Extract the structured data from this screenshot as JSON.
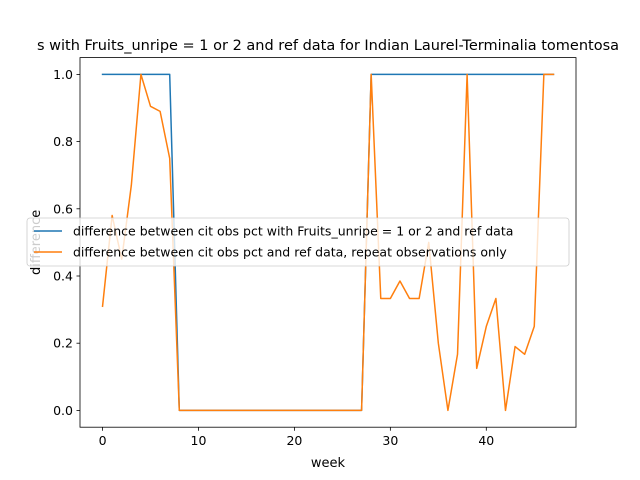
{
  "chart_data": {
    "type": "line",
    "title": "s with Fruits_unripe = 1 or 2 and ref data for Indian Laurel-Terminalia tomentosa",
    "xlabel": "week",
    "ylabel": "difference",
    "xlim": [
      -2.35,
      49.35
    ],
    "ylim": [
      -0.05,
      1.05
    ],
    "xticks": [
      0,
      10,
      20,
      30,
      40
    ],
    "yticks": [
      0.0,
      0.2,
      0.4,
      0.6,
      0.8,
      1.0
    ],
    "legend_placement": "center-right",
    "grid": false,
    "series": [
      {
        "name": "difference between cit obs pct with Fruits_unripe = 1 or 2 and ref data",
        "color": "#1f77b4",
        "x": [
          0,
          1,
          2,
          3,
          4,
          5,
          6,
          7,
          8,
          9,
          10,
          11,
          12,
          13,
          14,
          15,
          16,
          17,
          18,
          19,
          20,
          21,
          22,
          23,
          24,
          25,
          26,
          27,
          28,
          29,
          30,
          31,
          32,
          33,
          34,
          35,
          36,
          37,
          38,
          39,
          40,
          41,
          42,
          43,
          44,
          45,
          46,
          47
        ],
        "y": [
          1,
          1,
          1,
          1,
          1,
          1,
          1,
          1,
          0,
          0,
          0,
          0,
          0,
          0,
          0,
          0,
          0,
          0,
          0,
          0,
          0,
          0,
          0,
          0,
          0,
          0,
          0,
          0,
          1,
          1,
          1,
          1,
          1,
          1,
          1,
          1,
          1,
          1,
          1,
          1,
          1,
          1,
          1,
          1,
          1,
          1,
          1,
          1
        ]
      },
      {
        "name": "difference between cit obs pct and ref data, repeat observations only",
        "color": "#ff7f0e",
        "x": [
          0,
          1,
          2,
          3,
          4,
          5,
          6,
          7,
          8,
          9,
          10,
          11,
          12,
          13,
          14,
          15,
          16,
          17,
          18,
          19,
          20,
          21,
          22,
          23,
          24,
          25,
          26,
          27,
          28,
          29,
          30,
          31,
          32,
          33,
          34,
          35,
          36,
          37,
          38,
          39,
          40,
          41,
          42,
          43,
          44,
          45,
          46,
          47
        ],
        "y": [
          0.31,
          0.58,
          0.45,
          0.67,
          1.0,
          0.905,
          0.89,
          0.75,
          0,
          0,
          0,
          0,
          0,
          0,
          0,
          0,
          0,
          0,
          0,
          0,
          0,
          0,
          0,
          0,
          0,
          0,
          0,
          0,
          1.0,
          0.333,
          0.333,
          0.385,
          0.333,
          0.333,
          0.5,
          0.2,
          0,
          0.167,
          1.0,
          0.125,
          0.25,
          0.333,
          0,
          0.19,
          0.167,
          0.25,
          1.0,
          1.0
        ]
      }
    ]
  }
}
